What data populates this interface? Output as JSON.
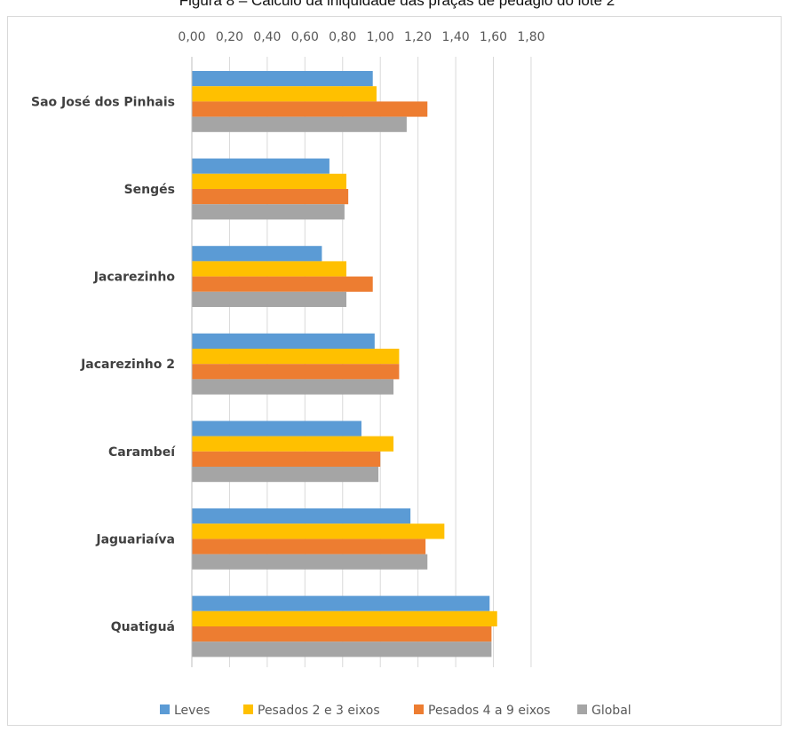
{
  "page": {
    "title": "Figura 8 – Cálculo da iniquidade das praças de pedágio do lote 2"
  },
  "chart_data": {
    "type": "bar",
    "orientation": "horizontal",
    "title": "",
    "categories": [
      "Sao José dos Pinhais",
      "Sengés",
      "Jacarezinho",
      "Jacarezinho 2",
      "Carambeí",
      "Jaguariaíva",
      "Quatiguá"
    ],
    "series": [
      {
        "name": "Leves",
        "color": "#5B9BD5",
        "values": [
          0.96,
          0.73,
          0.69,
          0.97,
          0.9,
          1.16,
          1.58
        ]
      },
      {
        "name": "Pesados 2 e 3 eixos",
        "color": "#FFC000",
        "values": [
          0.98,
          0.82,
          0.82,
          1.1,
          1.07,
          1.34,
          1.62
        ]
      },
      {
        "name": "Pesados 4 a 9 eixos",
        "color": "#ED7D31",
        "values": [
          1.25,
          0.83,
          0.96,
          1.1,
          1.0,
          1.24,
          1.59
        ]
      },
      {
        "name": "Global",
        "color": "#A5A5A5",
        "values": [
          1.14,
          0.81,
          0.82,
          1.07,
          0.99,
          1.25,
          1.59
        ]
      }
    ],
    "xlim": [
      0,
      1.8
    ],
    "ticks": [
      "0,00",
      "0,20",
      "0,40",
      "0,60",
      "0,80",
      "1,00",
      "1,20",
      "1,40",
      "1,60",
      "1,80"
    ],
    "tick_values": [
      0,
      0.2,
      0.4,
      0.6,
      0.8,
      1.0,
      1.2,
      1.4,
      1.6,
      1.8
    ],
    "axis_position": "top",
    "grid": true,
    "legend_position": "bottom",
    "gridline_color": "#d9d9d9"
  }
}
